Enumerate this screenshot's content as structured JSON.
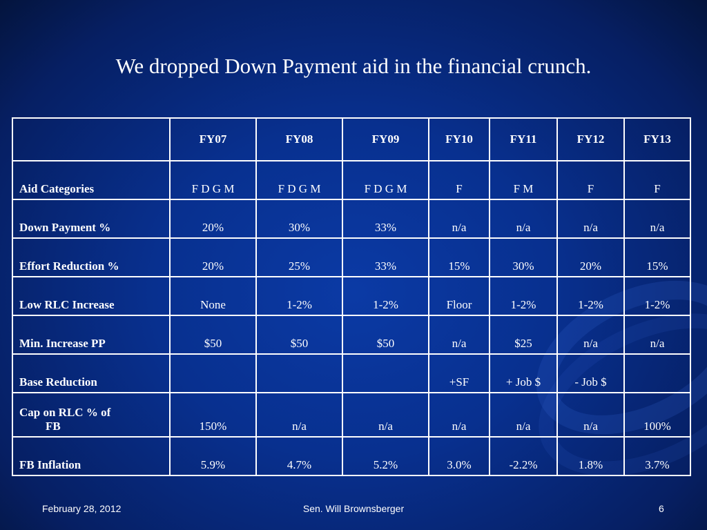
{
  "slide": {
    "title": "We dropped Down Payment aid in the financial crunch."
  },
  "table": {
    "columns": [
      "",
      "FY07",
      "FY08",
      "FY09",
      "FY10",
      "FY11",
      "FY12",
      "FY13"
    ],
    "rows": [
      {
        "label": "Aid Categories",
        "values": [
          "F D G M",
          "F D G M",
          "F D G M",
          "F",
          "F M",
          "F",
          "F"
        ]
      },
      {
        "label": "Down Payment %",
        "values": [
          "20%",
          "30%",
          "33%",
          "n/a",
          "n/a",
          "n/a",
          "n/a"
        ]
      },
      {
        "label": "Effort Reduction %",
        "values": [
          "20%",
          "25%",
          "33%",
          "15%",
          "30%",
          "20%",
          "15%"
        ]
      },
      {
        "label": "Low RLC Increase",
        "values": [
          "None",
          "1-2%",
          "1-2%",
          "Floor",
          "1-2%",
          "1-2%",
          "1-2%"
        ]
      },
      {
        "label": "Min. Increase PP",
        "values": [
          "$50",
          "$50",
          "$50",
          "n/a",
          "$25",
          "n/a",
          "n/a"
        ]
      },
      {
        "label": "Base Reduction",
        "values": [
          "",
          "",
          "",
          "+SF",
          "+ Job $",
          "- Job $",
          ""
        ]
      },
      {
        "label_line1": "Cap on RLC % of",
        "label_line2": "FB",
        "values": [
          "150%",
          "n/a",
          "n/a",
          "n/a",
          "n/a",
          "n/a",
          "100%"
        ]
      },
      {
        "label": "FB Inflation",
        "values": [
          "5.9%",
          "4.7%",
          "5.2%",
          "3.0%",
          "-2.2%",
          "1.8%",
          "3.7%"
        ]
      }
    ]
  },
  "footer": {
    "date": "February 28, 2012",
    "author": "Sen. Will Brownsberger",
    "page": "6"
  }
}
